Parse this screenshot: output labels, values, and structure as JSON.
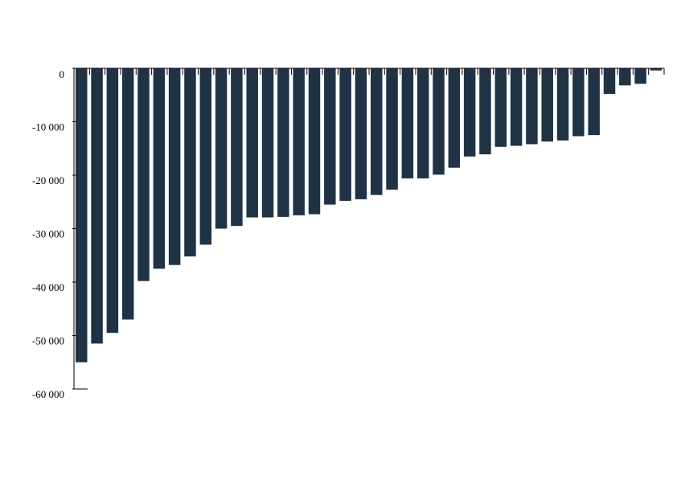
{
  "chart_data": {
    "type": "bar",
    "title": "",
    "xlabel": "",
    "ylabel": "",
    "ylim": [
      -60000,
      0
    ],
    "yticks": [
      0,
      -10000,
      -20000,
      -30000,
      -40000,
      -50000,
      -60000
    ],
    "ytick_labels": [
      "0",
      "-10 000",
      "-20 000",
      "-30 000",
      "-40 000",
      "-50 000",
      "-60 000"
    ],
    "grid": false,
    "legend": "none",
    "bar_color": "#1f3344",
    "values": [
      -55000,
      -51500,
      -49500,
      -47000,
      -39800,
      -37500,
      -36800,
      -35200,
      -33000,
      -30000,
      -29500,
      -27900,
      -27900,
      -27800,
      -27500,
      -27300,
      -25500,
      -24800,
      -24500,
      -23700,
      -22700,
      -20600,
      -20600,
      -19900,
      -18600,
      -16500,
      -16100,
      -14700,
      -14500,
      -14200,
      -13700,
      -13500,
      -12700,
      -12500,
      -4800,
      -3200,
      -2900,
      -400
    ]
  }
}
